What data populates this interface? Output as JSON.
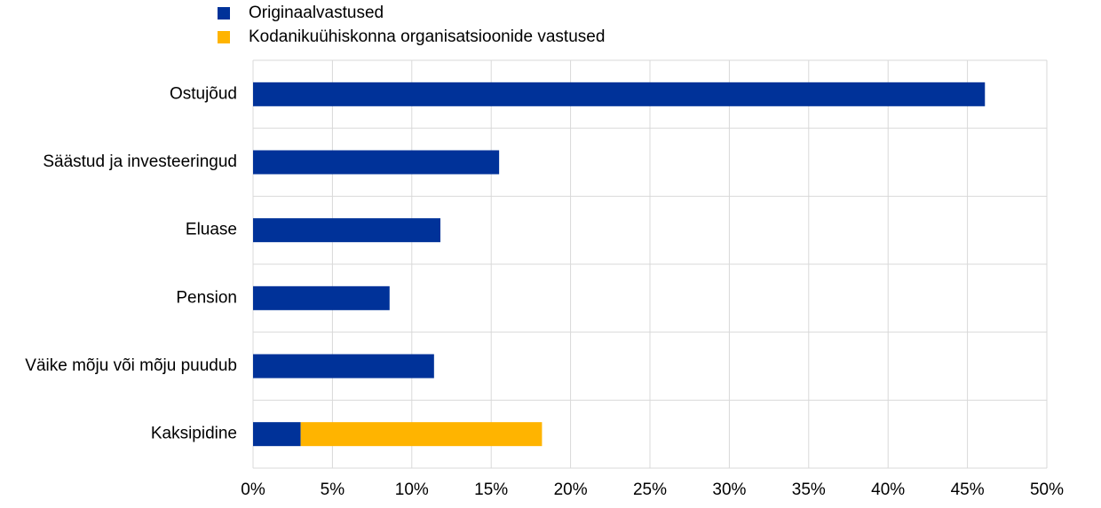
{
  "chart_data": {
    "type": "bar",
    "orientation": "horizontal",
    "stacked": true,
    "categories": [
      "Ostujõud",
      "Säästud ja investeeringud",
      "Eluase",
      "Pension",
      "Väike mõju või mõju puudub",
      "Kaksipidine"
    ],
    "series": [
      {
        "name": "Originaalvastused",
        "color": "#003299",
        "values": [
          46.1,
          15.5,
          11.8,
          8.6,
          11.4,
          3.0
        ]
      },
      {
        "name": "Kodanikuühiskonna organisatsioonide vastused",
        "color": "#ffb400",
        "values": [
          0,
          0,
          0,
          0,
          0,
          15.2
        ]
      }
    ],
    "xlim": [
      0,
      50
    ],
    "xticks": [
      {
        "value": 0,
        "label": "0%"
      },
      {
        "value": 5,
        "label": "5%"
      },
      {
        "value": 10,
        "label": "10%"
      },
      {
        "value": 15,
        "label": "15%"
      },
      {
        "value": 20,
        "label": "20%"
      },
      {
        "value": 25,
        "label": "25%"
      },
      {
        "value": 30,
        "label": "30%"
      },
      {
        "value": 35,
        "label": "35%"
      },
      {
        "value": 40,
        "label": "40%"
      },
      {
        "value": 45,
        "label": "45%"
      },
      {
        "value": 50,
        "label": "50%"
      }
    ],
    "grid": true
  }
}
